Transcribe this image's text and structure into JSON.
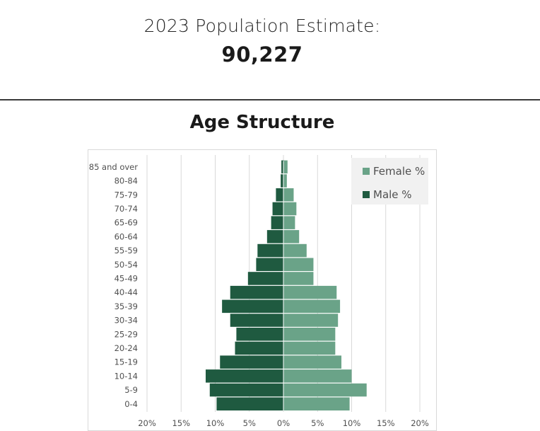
{
  "header": {
    "estimate_label": "2023 Population Estimate:",
    "estimate_value": "90,227"
  },
  "section": {
    "title": "Age Structure"
  },
  "colors": {
    "female": "#6aa388",
    "male": "#1f5a40",
    "grid": "#d9d9d9",
    "chart_border": "#d9d9d9",
    "legend_bg": "#f1f1f1",
    "tick_text": "#505050"
  },
  "chart_data": {
    "type": "bar",
    "orientation": "horizontal",
    "layout": "population-pyramid",
    "title": "",
    "xlabel": "",
    "ylabel": "",
    "categories": [
      "0-4",
      "5-9",
      "10-14",
      "15-19",
      "20-24",
      "25-29",
      "30-34",
      "35-39",
      "40-44",
      "45-49",
      "50-54",
      "55-59",
      "60-64",
      "65-69",
      "70-74",
      "75-79",
      "80-84",
      "85 and over"
    ],
    "series": [
      {
        "name": "Female %",
        "side": "right",
        "values": [
          9.7,
          12.2,
          10.0,
          8.5,
          7.6,
          7.6,
          8.0,
          8.3,
          7.8,
          4.4,
          4.4,
          3.4,
          2.3,
          1.7,
          1.9,
          1.5,
          0.5,
          0.6
        ]
      },
      {
        "name": "Male %",
        "side": "left",
        "values": [
          9.8,
          10.8,
          11.4,
          9.3,
          7.1,
          6.9,
          7.8,
          9.0,
          7.8,
          5.2,
          4.0,
          3.8,
          2.4,
          1.8,
          1.6,
          1.1,
          0.4,
          0.3
        ]
      }
    ],
    "xlim": [
      -20,
      20
    ],
    "xticks": [
      -20,
      -15,
      -10,
      -5,
      0,
      5,
      10,
      15,
      20
    ],
    "xtick_labels": [
      "20%",
      "15%",
      "10%",
      "5%",
      "0%",
      "5%",
      "10%",
      "15%",
      "20%"
    ],
    "grid": "vertical",
    "legend": {
      "position": "top-right",
      "entries": [
        "Female %",
        "Male %"
      ]
    }
  }
}
